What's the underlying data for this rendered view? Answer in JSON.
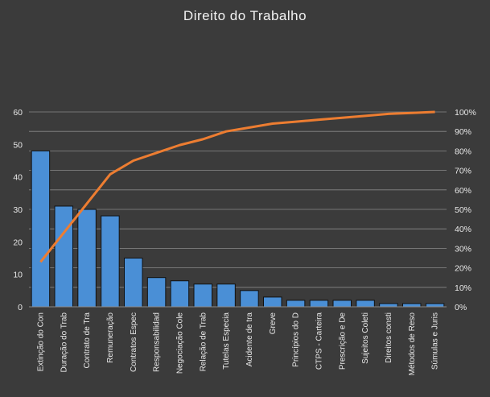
{
  "chart_data": {
    "type": "bar",
    "title": "Direito do Trabalho",
    "categories": [
      "Extinção do Con",
      "Duração do Trab",
      "Contrato de Tra",
      "Remuneração",
      "Contratos Espec",
      "Responsabilidad",
      "Negociação Cole",
      "Relação de Trab",
      "Tutelas Especia",
      "Acidente de tra",
      "Greve",
      "Princípios do D",
      "CTPS - Carteira",
      "Prescrição e De",
      "Sujeitos Coleti",
      "Direitos consti",
      "Métodos de Reso",
      "Súmulas e Juris"
    ],
    "series": [
      {
        "type": "bar",
        "axis": "left",
        "values": [
          48,
          31,
          30,
          28,
          15,
          9,
          8,
          7,
          7,
          5,
          3,
          2,
          2,
          2,
          2,
          1,
          1,
          1
        ]
      },
      {
        "type": "line",
        "axis": "right",
        "values": [
          23,
          38,
          53,
          68,
          75,
          79,
          83,
          86,
          90,
          92,
          94,
          95,
          96,
          97,
          98,
          99,
          99.5,
          100
        ]
      }
    ],
    "ylim_left": [
      0,
      60
    ],
    "yticks_left": [
      "0",
      "10",
      "20",
      "30",
      "40",
      "50",
      "60"
    ],
    "ylim_right": [
      0,
      100
    ],
    "yticks_right": [
      "0%",
      "10%",
      "20%",
      "30%",
      "40%",
      "50%",
      "60%",
      "70%",
      "80%",
      "90%",
      "100%"
    ],
    "grid": true,
    "legend": "none",
    "colors": {
      "background": "#3b3b3b",
      "bar": "#4a8fd6",
      "bar_edge": "#111111",
      "line": "#ed7d31",
      "grid": "#8a8a8a",
      "text": "#e8e8e8"
    }
  }
}
